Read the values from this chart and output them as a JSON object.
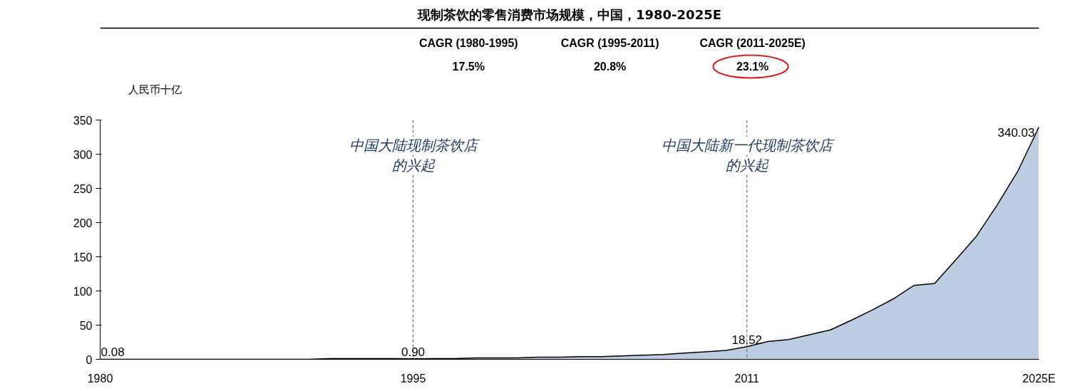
{
  "chart_data": {
    "type": "area",
    "title": "现制茶饮的零售消费市场规模，中国，1980-2025E",
    "ylabel": "人民币十亿",
    "categories": [
      "1980",
      null,
      null,
      null,
      null,
      null,
      null,
      null,
      null,
      null,
      null,
      null,
      null,
      null,
      null,
      "1995",
      null,
      null,
      null,
      null,
      null,
      null,
      null,
      null,
      null,
      null,
      null,
      null,
      null,
      null,
      null,
      "2011",
      null,
      null,
      null,
      null,
      null,
      null,
      null,
      null,
      null,
      null,
      null,
      null,
      null,
      "2025E"
    ],
    "series": [
      {
        "color": "#bfcde2",
        "values": [
          0.08,
          0,
          0,
          0,
          0,
          0,
          0,
          0,
          0,
          0,
          0,
          1,
          1,
          1,
          1,
          0.9,
          1,
          1,
          2,
          2,
          2,
          3,
          3,
          4,
          4,
          5,
          6,
          7,
          9,
          11,
          13,
          18.52,
          26,
          29,
          36,
          43,
          57,
          72,
          88,
          108,
          111,
          145,
          180,
          226,
          276,
          340.03
        ],
        "value_labels": [
          "0.08",
          null,
          null,
          null,
          null,
          null,
          null,
          null,
          null,
          null,
          null,
          null,
          null,
          null,
          null,
          "0.90",
          null,
          null,
          null,
          null,
          null,
          null,
          null,
          null,
          null,
          null,
          null,
          null,
          null,
          null,
          null,
          "18.52",
          null,
          null,
          null,
          null,
          null,
          null,
          null,
          null,
          null,
          null,
          null,
          null,
          null,
          "340.03"
        ]
      }
    ],
    "ylim": [
      0,
      350
    ],
    "yticks": [
      0,
      50,
      100,
      150,
      200,
      250,
      300,
      350
    ],
    "grid": false,
    "ref_lines": [
      {
        "axis": "x",
        "value": "1995",
        "label": [
          "中国大陆现制茶饮店",
          "的兴起"
        ],
        "line_style": "dashed"
      },
      {
        "axis": "x",
        "value": "2011",
        "label": [
          "中国大陆新一代现制茶饮店",
          "的兴起"
        ],
        "line_style": "dashed"
      }
    ],
    "annotations": [
      "CAGR (1980-1995)",
      "17.5%",
      "CAGR (1995-2011)",
      "20.8%",
      "CAGR (2011-2025E)",
      "23.1%"
    ]
  }
}
